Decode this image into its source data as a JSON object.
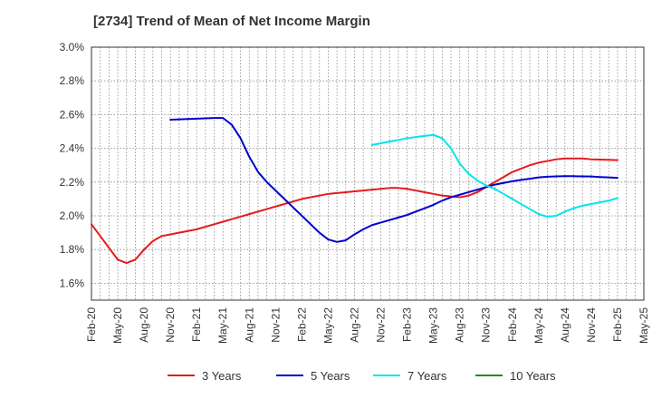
{
  "chart_data": {
    "type": "line",
    "title": "[2734]  Trend of Mean of Net Income Margin",
    "xlabel": "",
    "ylabel": "",
    "x_tick_labels": [
      "Feb-20",
      "May-20",
      "Aug-20",
      "Nov-20",
      "Feb-21",
      "May-21",
      "Aug-21",
      "Nov-21",
      "Feb-22",
      "May-22",
      "Aug-22",
      "Nov-22",
      "Feb-23",
      "May-23",
      "Aug-23",
      "Nov-23",
      "Feb-24",
      "May-24",
      "Aug-24",
      "Nov-24",
      "Feb-25",
      "May-25"
    ],
    "y_tick_labels": [
      "1.6%",
      "1.8%",
      "2.0%",
      "2.2%",
      "2.4%",
      "2.6%",
      "2.8%",
      "3.0%"
    ],
    "ylim": [
      1.5,
      3.0
    ],
    "grid": true,
    "legend_position": "bottom",
    "series": [
      {
        "name": "3 Years",
        "color": "#e41a1c",
        "points": [
          [
            "Feb-20",
            1.95
          ],
          [
            "Mar-20",
            1.88
          ],
          [
            "Apr-20",
            1.81
          ],
          [
            "May-20",
            1.74
          ],
          [
            "Jun-20",
            1.72
          ],
          [
            "Jul-20",
            1.74
          ],
          [
            "Aug-20",
            1.8
          ],
          [
            "Sep-20",
            1.85
          ],
          [
            "Oct-20",
            1.88
          ],
          [
            "Nov-20",
            1.89
          ],
          [
            "Dec-20",
            1.9
          ],
          [
            "Jan-21",
            1.91
          ],
          [
            "Feb-21",
            1.92
          ],
          [
            "Mar-21",
            1.935
          ],
          [
            "Apr-21",
            1.95
          ],
          [
            "May-21",
            1.965
          ],
          [
            "Jun-21",
            1.98
          ],
          [
            "Jul-21",
            1.995
          ],
          [
            "Aug-21",
            2.01
          ],
          [
            "Sep-21",
            2.025
          ],
          [
            "Oct-21",
            2.04
          ],
          [
            "Nov-21",
            2.055
          ],
          [
            "Dec-21",
            2.07
          ],
          [
            "Jan-22",
            2.085
          ],
          [
            "Feb-22",
            2.1
          ],
          [
            "Mar-22",
            2.11
          ],
          [
            "Apr-22",
            2.12
          ],
          [
            "May-22",
            2.13
          ],
          [
            "Jun-22",
            2.135
          ],
          [
            "Jul-22",
            2.14
          ],
          [
            "Aug-22",
            2.145
          ],
          [
            "Sep-22",
            2.15
          ],
          [
            "Oct-22",
            2.155
          ],
          [
            "Nov-22",
            2.16
          ],
          [
            "Dec-22",
            2.165
          ],
          [
            "Jan-23",
            2.165
          ],
          [
            "Feb-23",
            2.16
          ],
          [
            "Mar-23",
            2.15
          ],
          [
            "Apr-23",
            2.14
          ],
          [
            "May-23",
            2.13
          ],
          [
            "Jun-23",
            2.12
          ],
          [
            "Jul-23",
            2.115
          ],
          [
            "Aug-23",
            2.11
          ],
          [
            "Sep-23",
            2.12
          ],
          [
            "Oct-23",
            2.14
          ],
          [
            "Nov-23",
            2.17
          ],
          [
            "Dec-23",
            2.2
          ],
          [
            "Jan-24",
            2.23
          ],
          [
            "Feb-24",
            2.26
          ],
          [
            "Mar-24",
            2.28
          ],
          [
            "Apr-24",
            2.3
          ],
          [
            "May-24",
            2.315
          ],
          [
            "Jun-24",
            2.325
          ],
          [
            "Jul-24",
            2.335
          ],
          [
            "Aug-24",
            2.34
          ],
          [
            "Sep-24",
            2.34
          ],
          [
            "Oct-24",
            2.34
          ],
          [
            "Nov-24",
            2.335
          ],
          [
            "Dec-24",
            2.333
          ],
          [
            "Jan-25",
            2.332
          ],
          [
            "Feb-25",
            2.33
          ]
        ]
      },
      {
        "name": "5 Years",
        "color": "#0000cc",
        "points": [
          [
            "Nov-20",
            2.57
          ],
          [
            "Dec-20",
            2.572
          ],
          [
            "Jan-21",
            2.574
          ],
          [
            "Feb-21",
            2.576
          ],
          [
            "Mar-21",
            2.578
          ],
          [
            "Apr-21",
            2.58
          ],
          [
            "May-21",
            2.58
          ],
          [
            "Jun-21",
            2.54
          ],
          [
            "Jul-21",
            2.46
          ],
          [
            "Aug-21",
            2.35
          ],
          [
            "Sep-21",
            2.26
          ],
          [
            "Oct-21",
            2.2
          ],
          [
            "Nov-21",
            2.15
          ],
          [
            "Dec-21",
            2.1
          ],
          [
            "Jan-22",
            2.05
          ],
          [
            "Feb-22",
            2.0
          ],
          [
            "Mar-22",
            1.95
          ],
          [
            "Apr-22",
            1.9
          ],
          [
            "May-22",
            1.86
          ],
          [
            "Jun-22",
            1.845
          ],
          [
            "Jul-22",
            1.855
          ],
          [
            "Aug-22",
            1.89
          ],
          [
            "Sep-22",
            1.92
          ],
          [
            "Oct-22",
            1.945
          ],
          [
            "Nov-22",
            1.96
          ],
          [
            "Dec-22",
            1.975
          ],
          [
            "Jan-23",
            1.99
          ],
          [
            "Feb-23",
            2.005
          ],
          [
            "Mar-23",
            2.025
          ],
          [
            "Apr-23",
            2.045
          ],
          [
            "May-23",
            2.065
          ],
          [
            "Jun-23",
            2.09
          ],
          [
            "Jul-23",
            2.11
          ],
          [
            "Aug-23",
            2.125
          ],
          [
            "Sep-23",
            2.14
          ],
          [
            "Oct-23",
            2.155
          ],
          [
            "Nov-23",
            2.17
          ],
          [
            "Dec-23",
            2.185
          ],
          [
            "Jan-24",
            2.195
          ],
          [
            "Feb-24",
            2.205
          ],
          [
            "Mar-24",
            2.213
          ],
          [
            "Apr-24",
            2.22
          ],
          [
            "May-24",
            2.228
          ],
          [
            "Jun-24",
            2.232
          ],
          [
            "Jul-24",
            2.234
          ],
          [
            "Aug-24",
            2.235
          ],
          [
            "Sep-24",
            2.235
          ],
          [
            "Oct-24",
            2.234
          ],
          [
            "Nov-24",
            2.233
          ],
          [
            "Dec-24",
            2.23
          ],
          [
            "Jan-25",
            2.228
          ],
          [
            "Feb-25",
            2.225
          ]
        ]
      },
      {
        "name": "7 Years",
        "color": "#00e5ee",
        "points": [
          [
            "Oct-22",
            2.42
          ],
          [
            "Nov-22",
            2.43
          ],
          [
            "Dec-22",
            2.44
          ],
          [
            "Jan-23",
            2.45
          ],
          [
            "Feb-23",
            2.46
          ],
          [
            "Mar-23",
            2.467
          ],
          [
            "Apr-23",
            2.474
          ],
          [
            "May-23",
            2.48
          ],
          [
            "Jun-23",
            2.46
          ],
          [
            "Jul-23",
            2.4
          ],
          [
            "Aug-23",
            2.31
          ],
          [
            "Sep-23",
            2.25
          ],
          [
            "Oct-23",
            2.21
          ],
          [
            "Nov-23",
            2.18
          ],
          [
            "Dec-23",
            2.16
          ],
          [
            "Jan-24",
            2.13
          ],
          [
            "Feb-24",
            2.1
          ],
          [
            "Mar-24",
            2.07
          ],
          [
            "Apr-24",
            2.04
          ],
          [
            "May-24",
            2.01
          ],
          [
            "Jun-24",
            1.995
          ],
          [
            "Jul-24",
            2.0
          ],
          [
            "Aug-24",
            2.025
          ],
          [
            "Sep-24",
            2.045
          ],
          [
            "Oct-24",
            2.06
          ],
          [
            "Nov-24",
            2.07
          ],
          [
            "Dec-24",
            2.08
          ],
          [
            "Jan-25",
            2.09
          ],
          [
            "Feb-25",
            2.105
          ]
        ]
      },
      {
        "name": "10 Years",
        "color": "#228b22",
        "points": []
      }
    ]
  }
}
